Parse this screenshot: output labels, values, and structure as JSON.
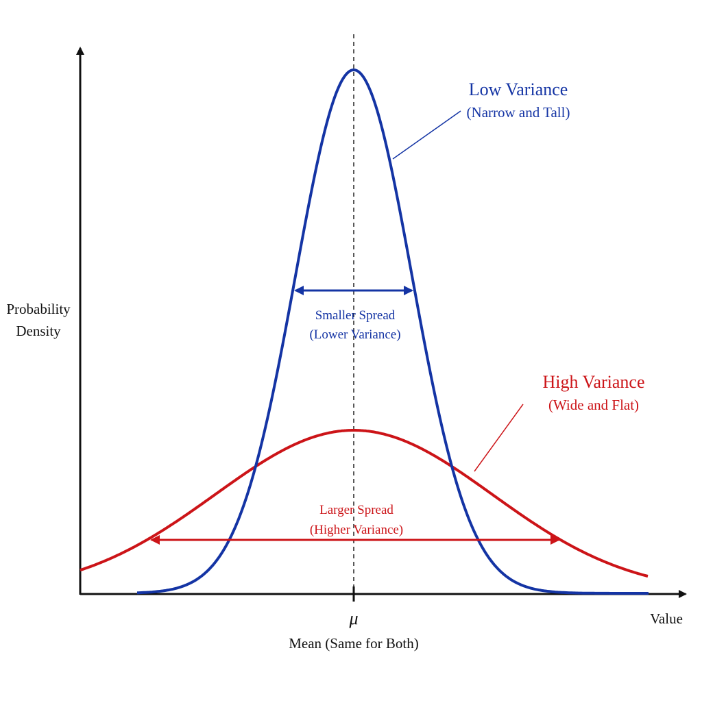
{
  "colors": {
    "axis": "#111111",
    "low": "#1434a4",
    "high": "#cc1418",
    "mean_line": "#222222"
  },
  "axes": {
    "y_label_line1": "Probability",
    "y_label_line2": "Density",
    "x_label": "Value",
    "mean_symbol": "μ",
    "mean_label": "Mean (Same for Both)"
  },
  "low_variance": {
    "title": "Low Variance",
    "subtitle": "(Narrow and Tall)",
    "spread_line1": "Smaller Spread",
    "spread_line2": "(Lower Variance)"
  },
  "high_variance": {
    "title": "High Variance",
    "subtitle": "(Wide and Flat)",
    "spread_line1": "Larger Spread",
    "spread_line2": "(Higher Variance)"
  }
}
